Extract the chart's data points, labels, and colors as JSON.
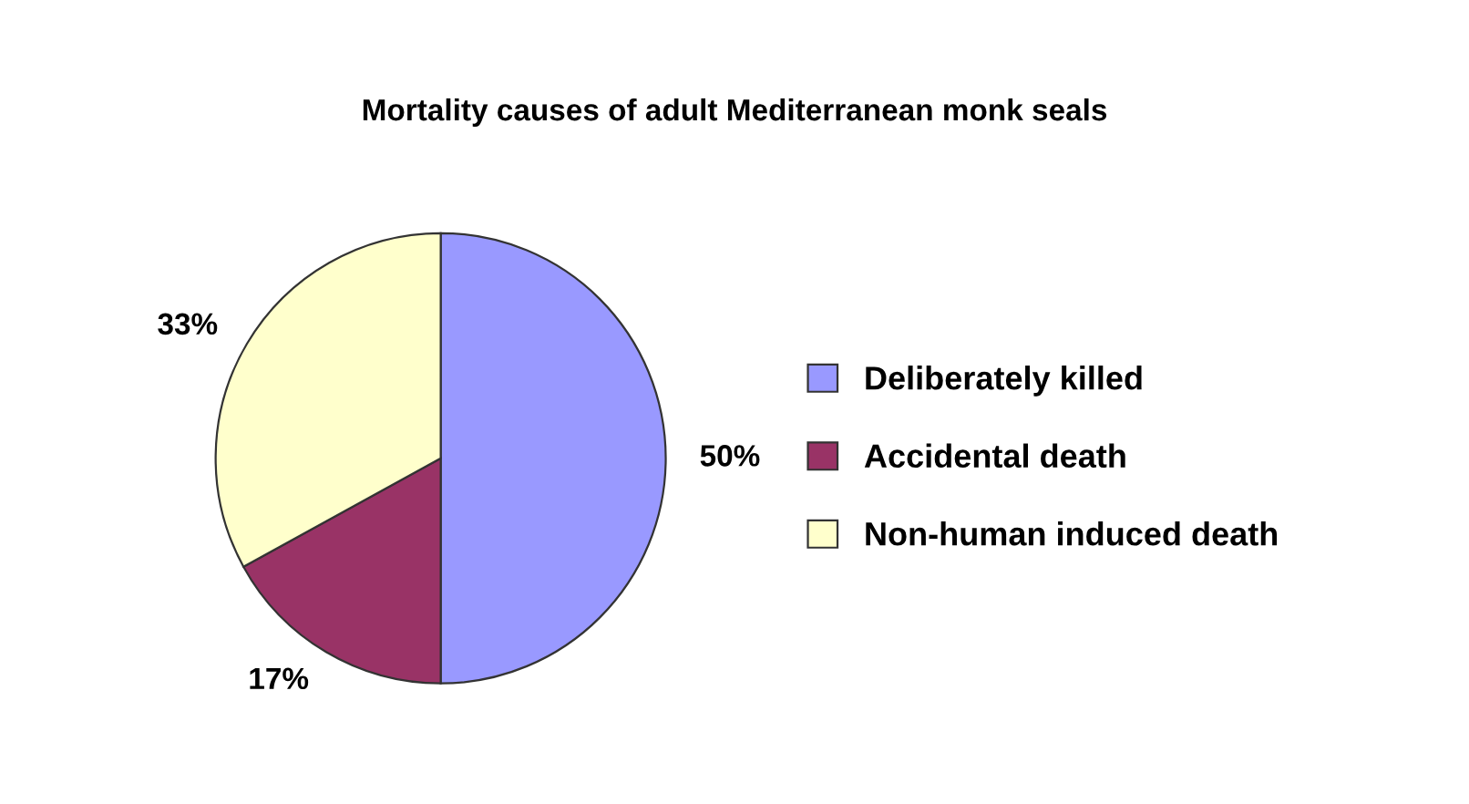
{
  "chart_data": {
    "type": "pie",
    "title": "Mortality causes of adult Mediterranean monk seals",
    "categories": [
      "Deliberately killed",
      "Accidental death",
      "Non-human induced death"
    ],
    "values": [
      50,
      17,
      33
    ],
    "colors": [
      "#9999ff",
      "#993366",
      "#ffffcc"
    ],
    "value_labels": [
      "50%",
      "17%",
      "33%"
    ],
    "legend": "right"
  }
}
